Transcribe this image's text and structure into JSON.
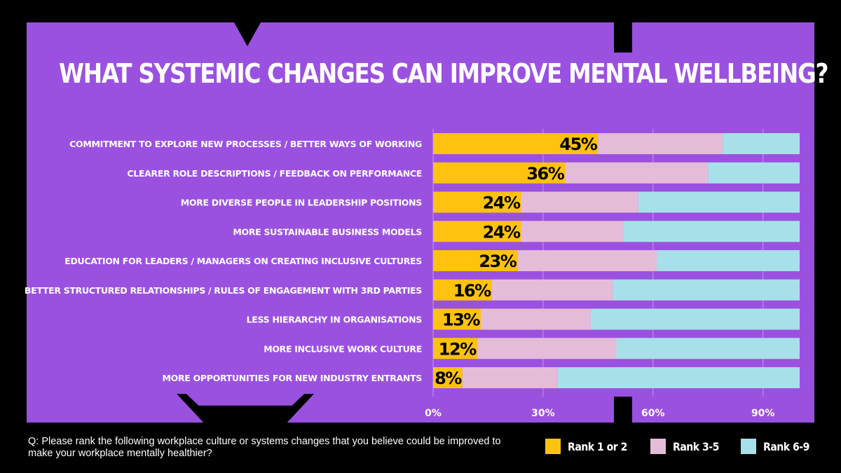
{
  "chart_data": {
    "type": "bar",
    "orientation": "horizontal",
    "stacked": true,
    "title": "WHAT SYSTEMIC CHANGES CAN IMPROVE MENTAL WELLBEING?",
    "categories": [
      "COMMITMENT TO EXPLORE NEW PROCESSES / BETTER WAYS OF WORKING",
      "CLEARER ROLE DESCRIPTIONS / FEEDBACK ON PERFORMANCE",
      "MORE DIVERSE PEOPLE IN LEADERSHIP POSITIONS",
      "MORE SUSTAINABLE BUSINESS MODELS",
      "EDUCATION FOR LEADERS / MANAGERS ON CREATING INCLUSIVE CULTURES",
      "BETTER STRUCTURED RELATIONSHIPS / RULES OF ENGAGEMENT WITH 3RD PARTIES",
      "LESS HIERARCHY IN ORGANISATIONS",
      "MORE INCLUSIVE WORK CULTURE",
      "MORE OPPORTUNITIES FOR NEW INDUSTRY ENTRANTS"
    ],
    "series": [
      {
        "name": "Rank 1 or 2",
        "color": "#ffc20e",
        "values": [
          45,
          36,
          24,
          24,
          23,
          16,
          13,
          12,
          8
        ]
      },
      {
        "name": "Rank 3-5",
        "color": "#e5bcd8",
        "values": [
          34,
          39,
          32,
          28,
          38,
          33,
          30,
          38,
          26
        ]
      },
      {
        "name": "Rank 6-9",
        "color": "#a8e0e9",
        "values": [
          21,
          25,
          44,
          48,
          39,
          51,
          57,
          50,
          66
        ]
      }
    ],
    "data_labels": [
      "45%",
      "36%",
      "24%",
      "24%",
      "23%",
      "16%",
      "13%",
      "12%",
      "8%"
    ],
    "xlim": [
      0,
      100
    ],
    "x_ticks": [
      0,
      30,
      60,
      90
    ],
    "x_tick_labels": [
      "0%",
      "30%",
      "60%",
      "90%"
    ],
    "grid": true,
    "legend_position": "bottom-right"
  },
  "footer": {
    "question": "Q: Please rank the following workplace culture or systems changes that you believe could be improved to make your workplace mentally healthier?"
  },
  "colors": {
    "background": "#000000",
    "panel": "#9b51e0",
    "gridline": "#c596ee"
  }
}
